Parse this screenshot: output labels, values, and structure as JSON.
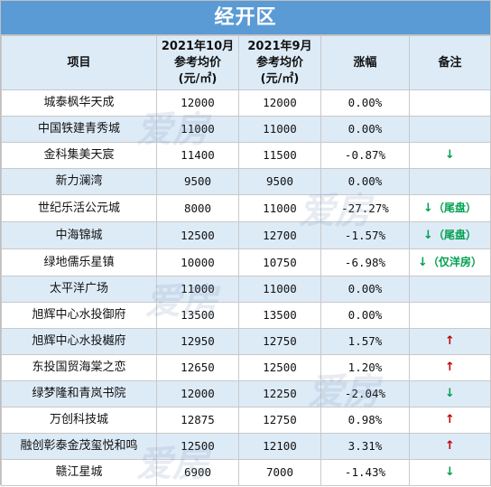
{
  "title": "经开区",
  "headers": {
    "project": "项目",
    "oct": [
      "2021年10月",
      "参考均价",
      "(元/㎡)"
    ],
    "sep": [
      "2021年9月",
      "参考均价",
      "(元/㎡)"
    ],
    "change": "涨幅",
    "note": "备注"
  },
  "rows": [
    {
      "name": "城泰枫华天成",
      "oct": "12000",
      "sep": "12000",
      "change": "0.00%",
      "trend": "",
      "note": ""
    },
    {
      "name": "中国铁建青秀城",
      "oct": "11000",
      "sep": "11000",
      "change": "0.00%",
      "trend": "",
      "note": ""
    },
    {
      "name": "金科集美天宸",
      "oct": "11400",
      "sep": "11500",
      "change": "-0.87%",
      "trend": "down",
      "note": ""
    },
    {
      "name": "新力澜湾",
      "oct": "9500",
      "sep": "9500",
      "change": "0.00%",
      "trend": "",
      "note": ""
    },
    {
      "name": "世纪乐活公元城",
      "oct": "8000",
      "sep": "11000",
      "change": "-27.27%",
      "trend": "down",
      "note": "（尾盘）"
    },
    {
      "name": "中海锦城",
      "oct": "12500",
      "sep": "12700",
      "change": "-1.57%",
      "trend": "down",
      "note": "（尾盘）"
    },
    {
      "name": "绿地儒乐星镇",
      "oct": "10000",
      "sep": "10750",
      "change": "-6.98%",
      "trend": "down",
      "note": "（仅洋房）"
    },
    {
      "name": "太平洋广场",
      "oct": "11000",
      "sep": "11000",
      "change": "0.00%",
      "trend": "",
      "note": ""
    },
    {
      "name": "旭辉中心水投御府",
      "oct": "13500",
      "sep": "13500",
      "change": "0.00%",
      "trend": "",
      "note": ""
    },
    {
      "name": "旭辉中心水投樾府",
      "oct": "12950",
      "sep": "12750",
      "change": "1.57%",
      "trend": "up",
      "note": ""
    },
    {
      "name": "东投国贸海棠之恋",
      "oct": "12650",
      "sep": "12500",
      "change": "1.20%",
      "trend": "up",
      "note": ""
    },
    {
      "name": "绿梦隆和青岚书院",
      "oct": "12000",
      "sep": "12250",
      "change": "-2.04%",
      "trend": "down",
      "note": ""
    },
    {
      "name": "万创科技城",
      "oct": "12875",
      "sep": "12750",
      "change": "0.98%",
      "trend": "up",
      "note": ""
    },
    {
      "name": "融创彰泰金茂玺悦和鸣",
      "oct": "12500",
      "sep": "12100",
      "change": "3.31%",
      "trend": "up",
      "note": ""
    },
    {
      "name": "赣江星城",
      "oct": "6900",
      "sep": "7000",
      "change": "-1.43%",
      "trend": "down",
      "note": ""
    }
  ],
  "watermark": "爱房",
  "colors": {
    "header_bg": "#5b9bd5",
    "band": "#ddebf7",
    "up": "#c00000",
    "down": "#00a050"
  }
}
